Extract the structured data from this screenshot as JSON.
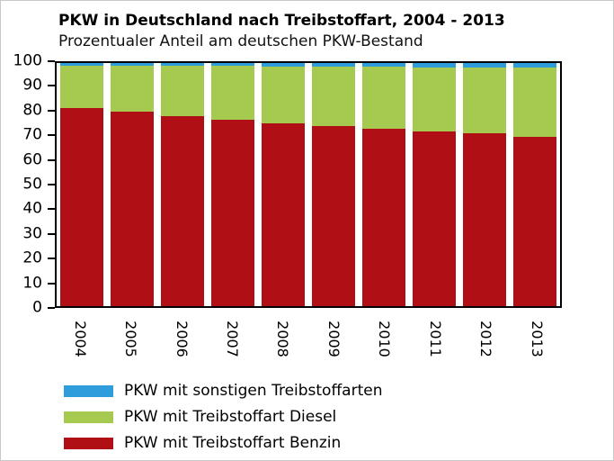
{
  "title": "PKW in Deutschland nach Treibstoffart, 2004 - 2013",
  "subtitle": "Prozentualer Anteil am deutschen PKW-Bestand",
  "colors": {
    "benzin": "#b01015",
    "diesel": "#a6c94f",
    "sonstige": "#2f9ddb"
  },
  "chart_data": {
    "type": "bar",
    "stacked": true,
    "title": "PKW in Deutschland nach Treibstoffart, 2004 - 2013",
    "subtitle": "Prozentualer Anteil am deutschen PKW-Bestand",
    "xlabel": "",
    "ylabel": "",
    "ylim": [
      0,
      100
    ],
    "yticks": [
      0,
      10,
      20,
      30,
      40,
      50,
      60,
      70,
      80,
      90,
      100
    ],
    "grid": false,
    "legend_position": "bottom-left",
    "categories": [
      "2004",
      "2005",
      "2006",
      "2007",
      "2008",
      "2009",
      "2010",
      "2011",
      "2012",
      "2013"
    ],
    "series": [
      {
        "name": "PKW mit Treibstoffart Benzin",
        "color": "#b01015",
        "values": [
          81.5,
          80.0,
          78.1,
          76.5,
          75.2,
          74.2,
          72.8,
          72.0,
          71.0,
          69.5
        ]
      },
      {
        "name": "PKW mit Treibstoffart Diesel",
        "color": "#a6c94f",
        "values": [
          17.5,
          19.0,
          20.8,
          22.3,
          23.5,
          24.3,
          25.6,
          26.3,
          27.2,
          28.5
        ]
      },
      {
        "name": "PKW mit sonstigen Treibstoffarten",
        "color": "#2f9ddb",
        "values": [
          1.0,
          1.0,
          1.1,
          1.2,
          1.3,
          1.5,
          1.6,
          1.7,
          1.8,
          2.0
        ]
      }
    ],
    "legend": [
      {
        "label": "PKW mit sonstigen Treibstoffarten",
        "color": "#2f9ddb"
      },
      {
        "label": "PKW mit Treibstoffart Diesel",
        "color": "#a6c94f"
      },
      {
        "label": "PKW mit Treibstoffart Benzin",
        "color": "#b01015"
      }
    ]
  }
}
